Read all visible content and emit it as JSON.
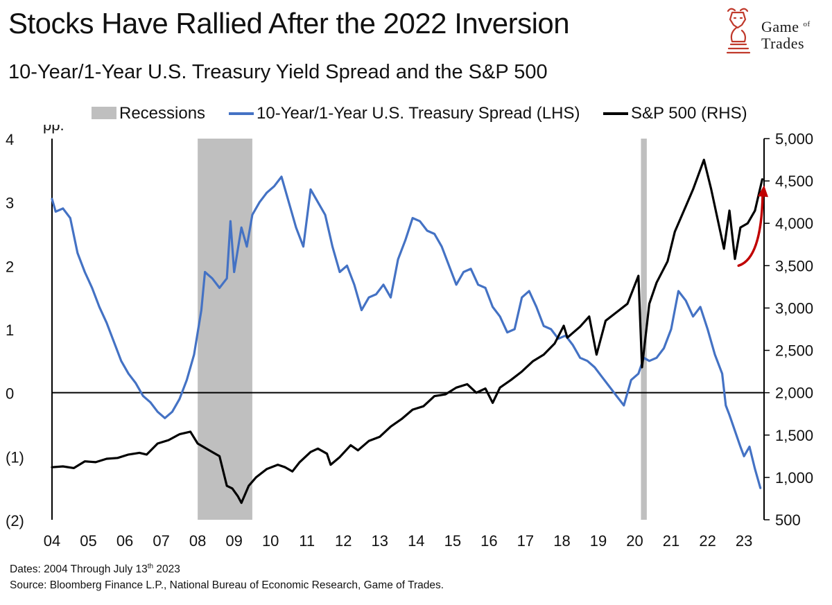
{
  "header": {
    "title": "Stocks Have Rallied After the 2022 Inversion",
    "subtitle": "10-Year/1-Year U.S. Treasury Yield Spread and the S&P 500"
  },
  "logo": {
    "line1_a": "Game",
    "line1_of": "of",
    "line2": "Trades",
    "icon": "bull-knight-icon",
    "color": "#c0392b"
  },
  "footer": {
    "dates_prefix": "Dates: 2004 Through July 13",
    "dates_sup": "th",
    "dates_suffix": " 2023",
    "source": "Source: Bloomberg Finance L.P., National Bureau of Economic Research, Game of Trades."
  },
  "colors": {
    "spread": "#4472c4",
    "sp500": "#000000",
    "recession": "#bfbfbf",
    "arrow": "#c00000"
  },
  "chart_data": {
    "type": "line",
    "legend": [
      "Recessions",
      "10-Year/1-Year U.S. Treasury Spread (LHS)",
      "S&P 500 (RHS)"
    ],
    "legend_placement": "top",
    "y_left": {
      "unit": "pp.",
      "range": [
        -2,
        4
      ],
      "ticks": [
        4,
        3,
        2,
        1,
        0,
        -1,
        -2
      ],
      "tick_labels": [
        "4",
        "3",
        "2",
        "1",
        "0",
        "(1)",
        "(2)"
      ]
    },
    "y_right": {
      "range": [
        500,
        5000
      ],
      "ticks": [
        5000,
        4500,
        4000,
        3500,
        3000,
        2500,
        2000,
        1500,
        1000,
        500
      ],
      "tick_labels": [
        "5,000",
        "4,500",
        "4,000",
        "3,500",
        "3,000",
        "2,500",
        "2,000",
        "1,500",
        "1,000",
        "500"
      ]
    },
    "x": {
      "range": [
        2004.0,
        2023.55
      ],
      "ticks": [
        2004,
        2005,
        2006,
        2007,
        2008,
        2009,
        2010,
        2011,
        2012,
        2013,
        2014,
        2015,
        2016,
        2017,
        2018,
        2019,
        2020,
        2021,
        2022,
        2023
      ],
      "tick_labels": [
        "04",
        "05",
        "06",
        "07",
        "08",
        "09",
        "10",
        "11",
        "12",
        "13",
        "14",
        "15",
        "16",
        "17",
        "18",
        "19",
        "20",
        "21",
        "22",
        "23"
      ]
    },
    "recessions": [
      [
        2008.0,
        2009.5
      ],
      [
        2020.17,
        2020.33
      ]
    ],
    "grid": false,
    "series": [
      {
        "name": "10-Year/1-Year U.S. Treasury Spread (LHS)",
        "axis": "left",
        "points": [
          [
            2004.0,
            3.05
          ],
          [
            2004.1,
            2.85
          ],
          [
            2004.3,
            2.9
          ],
          [
            2004.5,
            2.75
          ],
          [
            2004.7,
            2.2
          ],
          [
            2004.9,
            1.9
          ],
          [
            2005.1,
            1.65
          ],
          [
            2005.3,
            1.35
          ],
          [
            2005.5,
            1.1
          ],
          [
            2005.7,
            0.8
          ],
          [
            2005.9,
            0.5
          ],
          [
            2006.1,
            0.3
          ],
          [
            2006.3,
            0.15
          ],
          [
            2006.5,
            -0.05
          ],
          [
            2006.7,
            -0.15
          ],
          [
            2006.9,
            -0.3
          ],
          [
            2007.1,
            -0.4
          ],
          [
            2007.3,
            -0.3
          ],
          [
            2007.5,
            -0.1
          ],
          [
            2007.7,
            0.2
          ],
          [
            2007.9,
            0.6
          ],
          [
            2008.1,
            1.3
          ],
          [
            2008.2,
            1.9
          ],
          [
            2008.4,
            1.8
          ],
          [
            2008.6,
            1.65
          ],
          [
            2008.8,
            1.8
          ],
          [
            2008.9,
            2.7
          ],
          [
            2009.0,
            1.9
          ],
          [
            2009.2,
            2.6
          ],
          [
            2009.35,
            2.3
          ],
          [
            2009.5,
            2.8
          ],
          [
            2009.7,
            3.0
          ],
          [
            2009.9,
            3.15
          ],
          [
            2010.1,
            3.25
          ],
          [
            2010.3,
            3.4
          ],
          [
            2010.5,
            3.0
          ],
          [
            2010.7,
            2.6
          ],
          [
            2010.9,
            2.3
          ],
          [
            2011.1,
            3.2
          ],
          [
            2011.3,
            3.0
          ],
          [
            2011.5,
            2.8
          ],
          [
            2011.7,
            2.3
          ],
          [
            2011.9,
            1.9
          ],
          [
            2012.1,
            2.0
          ],
          [
            2012.3,
            1.7
          ],
          [
            2012.5,
            1.3
          ],
          [
            2012.7,
            1.5
          ],
          [
            2012.9,
            1.55
          ],
          [
            2013.1,
            1.7
          ],
          [
            2013.3,
            1.5
          ],
          [
            2013.5,
            2.1
          ],
          [
            2013.7,
            2.4
          ],
          [
            2013.9,
            2.75
          ],
          [
            2014.1,
            2.7
          ],
          [
            2014.3,
            2.55
          ],
          [
            2014.5,
            2.5
          ],
          [
            2014.7,
            2.3
          ],
          [
            2014.9,
            2.0
          ],
          [
            2015.1,
            1.7
          ],
          [
            2015.3,
            1.9
          ],
          [
            2015.5,
            1.95
          ],
          [
            2015.7,
            1.7
          ],
          [
            2015.9,
            1.65
          ],
          [
            2016.1,
            1.35
          ],
          [
            2016.3,
            1.2
          ],
          [
            2016.5,
            0.95
          ],
          [
            2016.7,
            1.0
          ],
          [
            2016.9,
            1.5
          ],
          [
            2017.1,
            1.6
          ],
          [
            2017.3,
            1.35
          ],
          [
            2017.5,
            1.05
          ],
          [
            2017.7,
            1.0
          ],
          [
            2017.9,
            0.85
          ],
          [
            2018.1,
            0.9
          ],
          [
            2018.3,
            0.75
          ],
          [
            2018.5,
            0.55
          ],
          [
            2018.7,
            0.5
          ],
          [
            2018.9,
            0.4
          ],
          [
            2019.1,
            0.25
          ],
          [
            2019.3,
            0.1
          ],
          [
            2019.5,
            -0.05
          ],
          [
            2019.7,
            -0.2
          ],
          [
            2019.9,
            0.2
          ],
          [
            2020.1,
            0.3
          ],
          [
            2020.25,
            0.55
          ],
          [
            2020.4,
            0.5
          ],
          [
            2020.6,
            0.55
          ],
          [
            2020.8,
            0.7
          ],
          [
            2021.0,
            1.0
          ],
          [
            2021.2,
            1.6
          ],
          [
            2021.4,
            1.45
          ],
          [
            2021.6,
            1.2
          ],
          [
            2021.8,
            1.35
          ],
          [
            2022.0,
            1.0
          ],
          [
            2022.2,
            0.6
          ],
          [
            2022.4,
            0.3
          ],
          [
            2022.5,
            -0.2
          ],
          [
            2022.6,
            -0.35
          ],
          [
            2022.75,
            -0.6
          ],
          [
            2022.9,
            -0.85
          ],
          [
            2023.0,
            -1.0
          ],
          [
            2023.15,
            -0.85
          ],
          [
            2023.3,
            -1.2
          ],
          [
            2023.45,
            -1.5
          ]
        ]
      },
      {
        "name": "S&P 500 (RHS)",
        "axis": "right",
        "points": [
          [
            2004.0,
            1120
          ],
          [
            2004.3,
            1130
          ],
          [
            2004.6,
            1110
          ],
          [
            2004.9,
            1190
          ],
          [
            2005.2,
            1180
          ],
          [
            2005.5,
            1220
          ],
          [
            2005.8,
            1230
          ],
          [
            2006.1,
            1270
          ],
          [
            2006.4,
            1290
          ],
          [
            2006.6,
            1270
          ],
          [
            2006.9,
            1400
          ],
          [
            2007.2,
            1440
          ],
          [
            2007.5,
            1510
          ],
          [
            2007.8,
            1540
          ],
          [
            2008.0,
            1400
          ],
          [
            2008.2,
            1350
          ],
          [
            2008.4,
            1300
          ],
          [
            2008.6,
            1250
          ],
          [
            2008.8,
            900
          ],
          [
            2008.95,
            870
          ],
          [
            2009.1,
            780
          ],
          [
            2009.2,
            700
          ],
          [
            2009.4,
            900
          ],
          [
            2009.6,
            1000
          ],
          [
            2009.9,
            1100
          ],
          [
            2010.2,
            1150
          ],
          [
            2010.4,
            1120
          ],
          [
            2010.6,
            1070
          ],
          [
            2010.8,
            1180
          ],
          [
            2011.1,
            1300
          ],
          [
            2011.3,
            1340
          ],
          [
            2011.55,
            1280
          ],
          [
            2011.65,
            1150
          ],
          [
            2011.9,
            1240
          ],
          [
            2012.2,
            1380
          ],
          [
            2012.4,
            1320
          ],
          [
            2012.7,
            1430
          ],
          [
            2013.0,
            1480
          ],
          [
            2013.3,
            1600
          ],
          [
            2013.6,
            1690
          ],
          [
            2013.9,
            1800
          ],
          [
            2014.2,
            1840
          ],
          [
            2014.5,
            1960
          ],
          [
            2014.8,
            1980
          ],
          [
            2015.1,
            2060
          ],
          [
            2015.4,
            2100
          ],
          [
            2015.65,
            2000
          ],
          [
            2015.9,
            2050
          ],
          [
            2016.1,
            1880
          ],
          [
            2016.3,
            2060
          ],
          [
            2016.6,
            2150
          ],
          [
            2016.9,
            2250
          ],
          [
            2017.2,
            2370
          ],
          [
            2017.5,
            2450
          ],
          [
            2017.8,
            2580
          ],
          [
            2018.05,
            2790
          ],
          [
            2018.15,
            2650
          ],
          [
            2018.5,
            2780
          ],
          [
            2018.75,
            2900
          ],
          [
            2018.95,
            2450
          ],
          [
            2019.2,
            2850
          ],
          [
            2019.5,
            2950
          ],
          [
            2019.8,
            3050
          ],
          [
            2020.1,
            3380
          ],
          [
            2020.2,
            2300
          ],
          [
            2020.4,
            3050
          ],
          [
            2020.6,
            3300
          ],
          [
            2020.9,
            3550
          ],
          [
            2021.1,
            3900
          ],
          [
            2021.4,
            4200
          ],
          [
            2021.6,
            4400
          ],
          [
            2021.9,
            4750
          ],
          [
            2022.1,
            4400
          ],
          [
            2022.3,
            4000
          ],
          [
            2022.45,
            3700
          ],
          [
            2022.6,
            4150
          ],
          [
            2022.75,
            3580
          ],
          [
            2022.9,
            3950
          ],
          [
            2023.1,
            4000
          ],
          [
            2023.3,
            4150
          ],
          [
            2023.5,
            4520
          ]
        ]
      }
    ],
    "annotation": {
      "type": "arrow",
      "from": [
        2022.85,
        3500
      ],
      "to": [
        2023.55,
        4450
      ]
    }
  }
}
